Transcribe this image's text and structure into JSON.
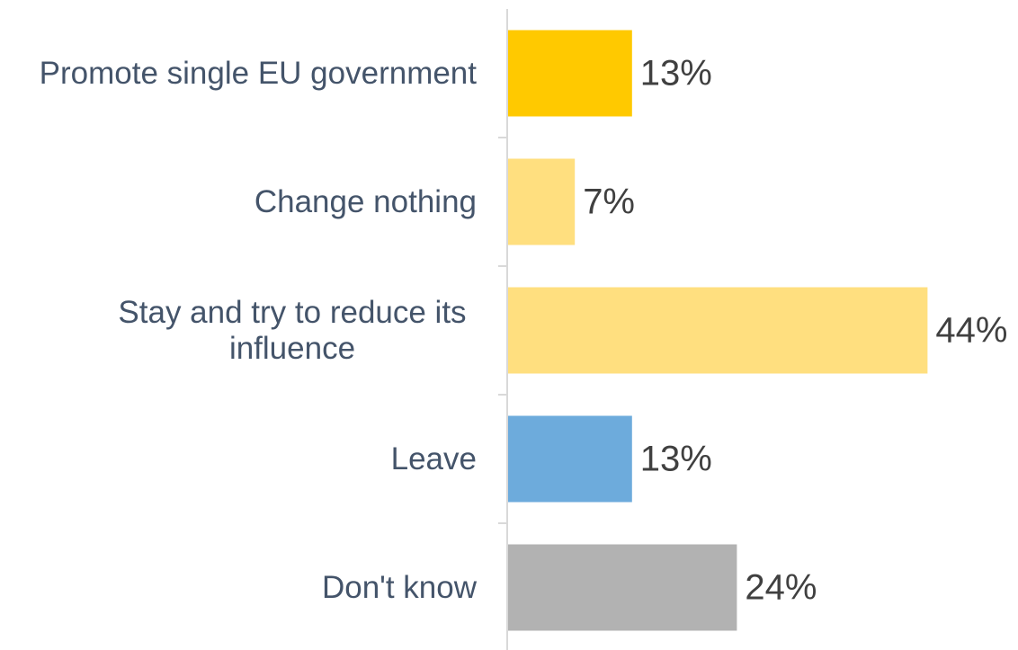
{
  "chart_data": {
    "type": "bar",
    "orientation": "horizontal",
    "categories": [
      "Promote single EU government",
      "Change nothing",
      "Stay and try to reduce its influence",
      "Leave",
      "Don't know"
    ],
    "category_lines": [
      [
        "Promote single EU government"
      ],
      [
        "Change nothing"
      ],
      [
        "Stay and try to reduce its",
        "influence"
      ],
      [
        "Leave"
      ],
      [
        "Don't know"
      ]
    ],
    "values": [
      13,
      7,
      44,
      13,
      24
    ],
    "value_labels": [
      "13%",
      "7%",
      "44%",
      "13%",
      "24%"
    ],
    "colors": [
      "#ffc900",
      "#ffdf7f",
      "#ffdf7f",
      "#6dabdc",
      "#b2b2b2"
    ],
    "xlim": [
      0,
      45
    ],
    "title": "",
    "xlabel": "",
    "ylabel": "",
    "grid": false,
    "legend": "none"
  }
}
